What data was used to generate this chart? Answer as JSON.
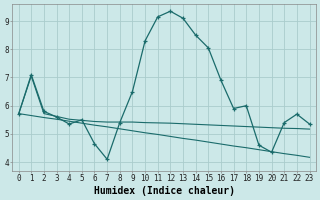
{
  "xlabel": "Humidex (Indice chaleur)",
  "bg_color": "#cce8e8",
  "grid_color": "#aacccc",
  "line_color": "#1a6b6b",
  "xlim": [
    -0.5,
    23.5
  ],
  "ylim": [
    3.7,
    9.6
  ],
  "line1_x": [
    0,
    1,
    2,
    3,
    4,
    5,
    6,
    7,
    8,
    9,
    10,
    11,
    12,
    13,
    14,
    15,
    16,
    17,
    18,
    19,
    20,
    21,
    22,
    23
  ],
  "line1_y": [
    5.7,
    7.1,
    5.8,
    5.6,
    5.35,
    5.5,
    4.65,
    4.1,
    5.4,
    6.5,
    8.3,
    9.15,
    9.35,
    9.1,
    8.5,
    8.05,
    6.9,
    5.9,
    6.0,
    4.6,
    4.35,
    5.4,
    5.7,
    5.35
  ],
  "line2_x": [
    0,
    1,
    2,
    3,
    4,
    5,
    6,
    7,
    8,
    9,
    10,
    11,
    12,
    13,
    14,
    15,
    16,
    17,
    18,
    19,
    20,
    21,
    22,
    23
  ],
  "line2_y": [
    5.72,
    5.65,
    5.58,
    5.52,
    5.45,
    5.38,
    5.31,
    5.25,
    5.18,
    5.11,
    5.04,
    4.98,
    4.91,
    4.84,
    4.78,
    4.71,
    4.64,
    4.57,
    4.51,
    4.44,
    4.37,
    4.3,
    4.24,
    4.17
  ],
  "line3_x": [
    0,
    1,
    2,
    3,
    4,
    5,
    6,
    7,
    8,
    9,
    10,
    11,
    12,
    13,
    14,
    15,
    16,
    17,
    18,
    19,
    20,
    21,
    22,
    23
  ],
  "line3_y": [
    5.7,
    7.05,
    5.72,
    5.62,
    5.52,
    5.48,
    5.44,
    5.42,
    5.42,
    5.42,
    5.4,
    5.39,
    5.38,
    5.36,
    5.34,
    5.32,
    5.3,
    5.28,
    5.26,
    5.24,
    5.22,
    5.2,
    5.19,
    5.17
  ],
  "yticks": [
    4,
    5,
    6,
    7,
    8,
    9
  ],
  "xticks": [
    0,
    1,
    2,
    3,
    4,
    5,
    6,
    7,
    8,
    9,
    10,
    11,
    12,
    13,
    14,
    15,
    16,
    17,
    18,
    19,
    20,
    21,
    22,
    23
  ],
  "tick_fontsize": 5.5,
  "xlabel_fontsize": 7.0
}
